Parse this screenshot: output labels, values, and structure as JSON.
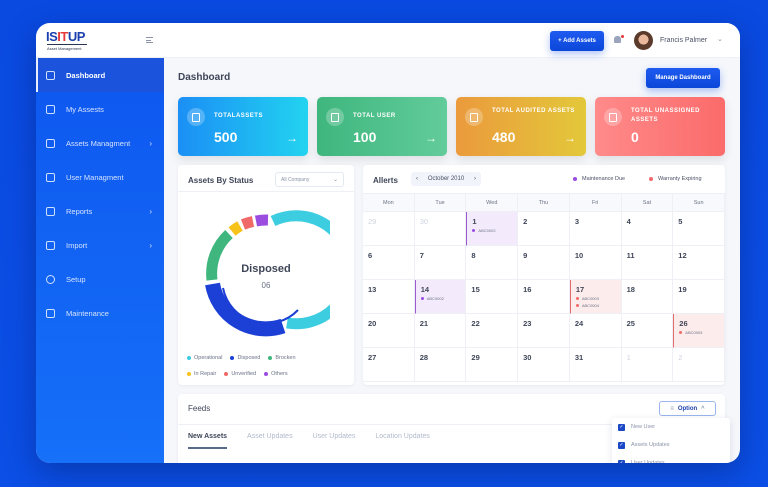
{
  "brand": {
    "logo_part1": "IS",
    "logo_part2": "IT",
    "logo_part3": "UP",
    "subtitle": "Asset Management"
  },
  "sidebar": {
    "items": [
      {
        "label": "Dashboard",
        "icon": "gauge-icon",
        "active": true,
        "has_submenu": false
      },
      {
        "label": "My Assests",
        "icon": "calendar-icon",
        "active": false,
        "has_submenu": false
      },
      {
        "label": "Assets Managment",
        "icon": "grid-icon",
        "active": false,
        "has_submenu": true
      },
      {
        "label": "User Managment",
        "icon": "users-icon",
        "active": false,
        "has_submenu": false
      },
      {
        "label": "Reports",
        "icon": "report-icon",
        "active": false,
        "has_submenu": true
      },
      {
        "label": "Import",
        "icon": "import-icon",
        "active": false,
        "has_submenu": true
      },
      {
        "label": "Setup",
        "icon": "gear-icon",
        "active": false,
        "has_submenu": false
      },
      {
        "label": "Maintenance",
        "icon": "tools-icon",
        "active": false,
        "has_submenu": false
      }
    ],
    "chevron": "›"
  },
  "topbar": {
    "add_assets_label": "+ Add Assets",
    "username": "Francis Palmer",
    "user_chevron": "⌄"
  },
  "main": {
    "page_title": "Dashboard",
    "manage_dashboard_label": "Manage Dashboard"
  },
  "stats": [
    {
      "label": "TOTALASSETS",
      "value": "500",
      "arrow": "→",
      "color_from": "#1b8ff5",
      "color_to": "#22d3f0"
    },
    {
      "label": "TOTAL USER",
      "value": "100",
      "arrow": "→",
      "color_from": "#3fb67e",
      "color_to": "#62cc9a"
    },
    {
      "label": "TOTAL AUDITED ASSETS",
      "value": "480",
      "arrow": "→",
      "color_from": "#eb9a3c",
      "color_to": "#e3c83a"
    },
    {
      "label": "TOTAL UNASSIGNED ASSETS",
      "value": "0",
      "arrow": "",
      "color_from": "#ff8a8a",
      "color_to": "#fb6b6b"
    }
  ],
  "status_panel": {
    "title": "Assets By Status",
    "filter_value": "All Company",
    "center_label": "Disposed",
    "center_value": "06",
    "legend": [
      {
        "label": "Operational",
        "color": "#3ccde0"
      },
      {
        "label": "Disposed",
        "color": "#1c3fd6"
      },
      {
        "label": "Brocken",
        "color": "#3fb67e"
      },
      {
        "label": "In Repair",
        "color": "#f7c21a"
      },
      {
        "label": "Unverified",
        "color": "#f06a6a"
      },
      {
        "label": "Others",
        "color": "#9b4de0"
      }
    ]
  },
  "calendar": {
    "title": "Allerts",
    "month": "October 2010",
    "prev": "‹",
    "next": "›",
    "tags": [
      {
        "label": "Maintenance Due",
        "color": "#9b4de0",
        "bg": "#f3ebfb"
      },
      {
        "label": "Warranty Expiring",
        "color": "#f06a6a",
        "bg": "#fdecec"
      }
    ],
    "weekdays": [
      "Mon",
      "Tue",
      "Wed",
      "Thu",
      "Fri",
      "Sat",
      "Sun"
    ],
    "weeks": [
      [
        {
          "d": "29",
          "muted": true
        },
        {
          "d": "30",
          "muted": true
        },
        {
          "d": "1",
          "type": "purple",
          "events": [
            "ABC0002"
          ]
        },
        {
          "d": "2"
        },
        {
          "d": "3"
        },
        {
          "d": "4"
        },
        {
          "d": "5"
        }
      ],
      [
        {
          "d": "6"
        },
        {
          "d": "7"
        },
        {
          "d": "8"
        },
        {
          "d": "9"
        },
        {
          "d": "10"
        },
        {
          "d": "11"
        },
        {
          "d": "12"
        }
      ],
      [
        {
          "d": "13"
        },
        {
          "d": "14",
          "type": "purple",
          "events": [
            "ABC0002"
          ]
        },
        {
          "d": "15"
        },
        {
          "d": "16"
        },
        {
          "d": "17",
          "type": "red",
          "events": [
            "ABC0003",
            "ABC0004"
          ]
        },
        {
          "d": "18"
        },
        {
          "d": "19"
        }
      ],
      [
        {
          "d": "20"
        },
        {
          "d": "21"
        },
        {
          "d": "22"
        },
        {
          "d": "23"
        },
        {
          "d": "24"
        },
        {
          "d": "25"
        },
        {
          "d": "26",
          "type": "red",
          "events": [
            "ABC0003"
          ]
        }
      ],
      [
        {
          "d": "27"
        },
        {
          "d": "28"
        },
        {
          "d": "29"
        },
        {
          "d": "30"
        },
        {
          "d": "31"
        },
        {
          "d": "1",
          "muted": true
        },
        {
          "d": "2",
          "muted": true
        }
      ]
    ]
  },
  "feeds": {
    "title": "Feeds",
    "option_label": "Option",
    "tabs": [
      {
        "label": "New Assets",
        "active": true
      },
      {
        "label": "Asset Updates",
        "active": false
      },
      {
        "label": "User Updates",
        "active": false
      },
      {
        "label": "Location Updates",
        "active": false
      }
    ],
    "options": [
      {
        "label": "New User",
        "checked": true
      },
      {
        "label": "Assets Updates",
        "checked": true
      },
      {
        "label": "User Updates",
        "checked": true
      }
    ]
  }
}
